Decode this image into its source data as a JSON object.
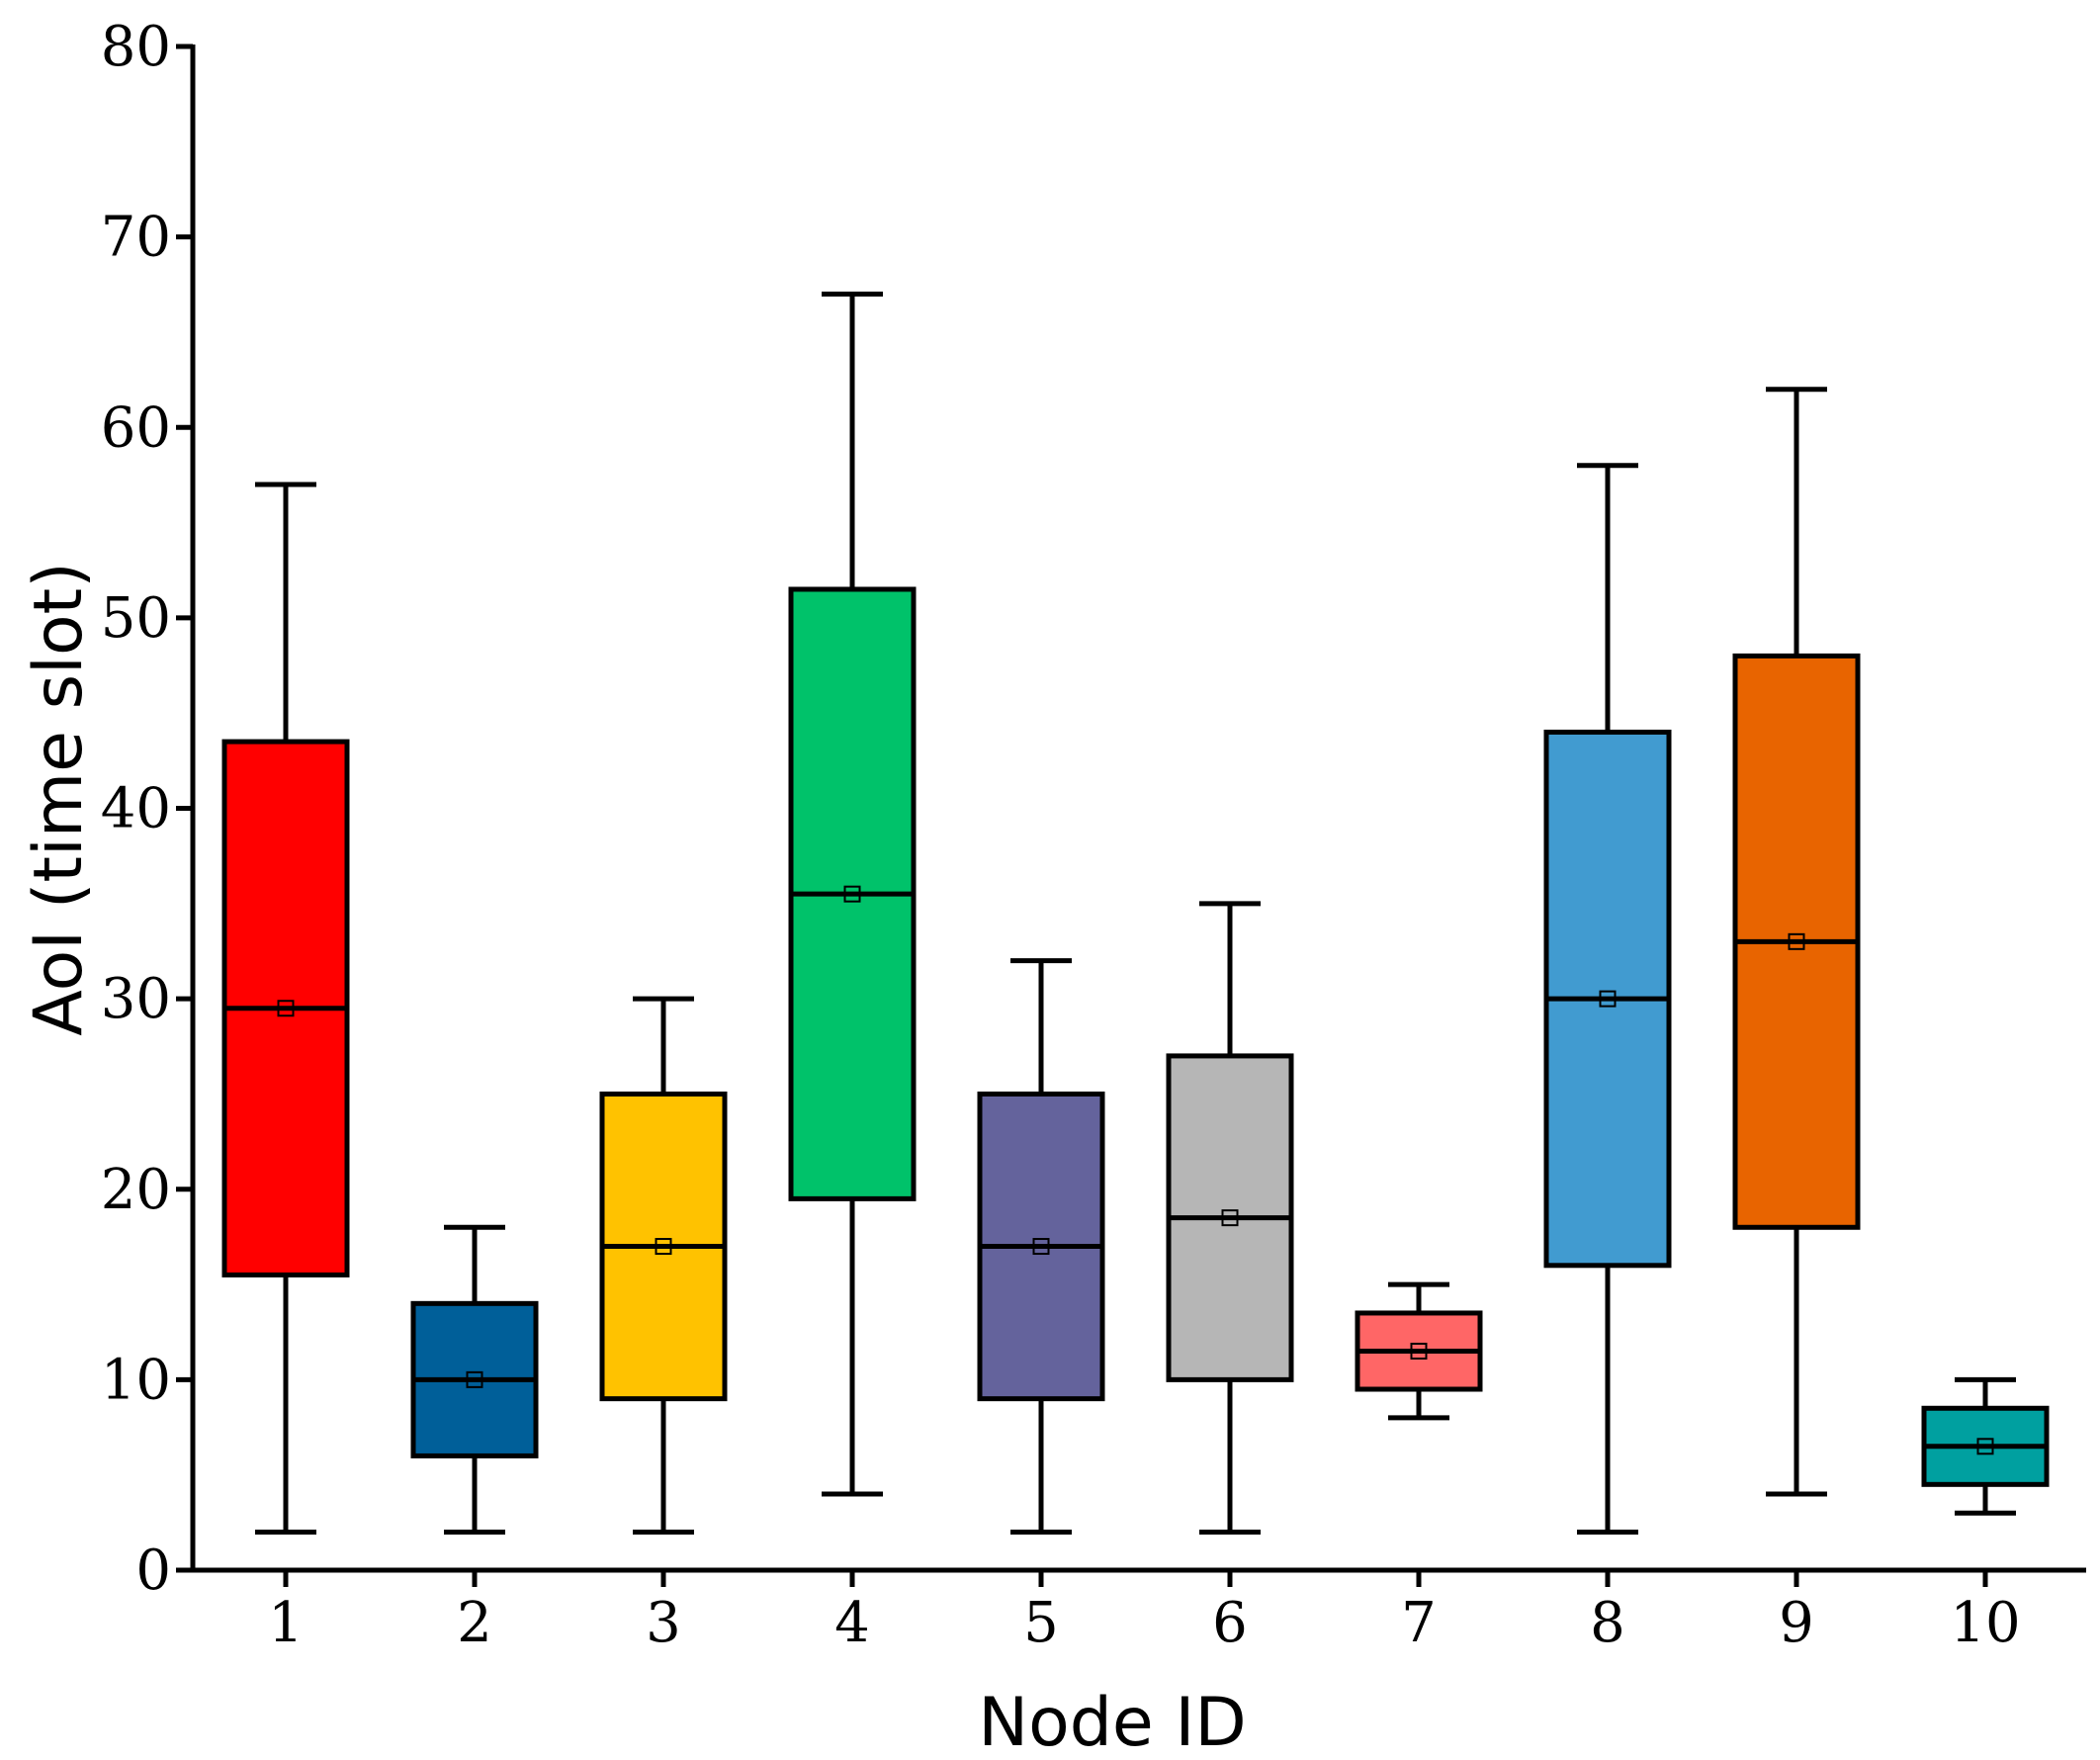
{
  "chart_data": {
    "type": "boxplot",
    "xlabel": "Node ID",
    "ylabel": "AoI (time slot)",
    "ylim": [
      0,
      80
    ],
    "yticks": [
      0,
      10,
      20,
      30,
      40,
      50,
      60,
      70,
      80
    ],
    "ytick_labels": [
      "0",
      "10",
      "20",
      "30",
      "40",
      "50",
      "60",
      "70",
      "80"
    ],
    "grid": false,
    "boxes": [
      {
        "label": "1",
        "whisker_low": 2,
        "q1": 15.5,
        "median": 29.5,
        "mean": 29.5,
        "q3": 43.5,
        "whisker_high": 57,
        "color": "#ff0000"
      },
      {
        "label": "2",
        "whisker_low": 2,
        "q1": 6,
        "median": 10,
        "mean": 10,
        "q3": 14,
        "whisker_high": 18,
        "color": "#005f99"
      },
      {
        "label": "3",
        "whisker_low": 2,
        "q1": 9,
        "median": 17,
        "mean": 17,
        "q3": 25,
        "whisker_high": 30,
        "color": "#ffc200"
      },
      {
        "label": "4",
        "whisker_low": 4,
        "q1": 19.5,
        "median": 35.5,
        "mean": 35.5,
        "q3": 51.5,
        "whisker_high": 67,
        "color": "#00c26a"
      },
      {
        "label": "5",
        "whisker_low": 2,
        "q1": 9,
        "median": 17,
        "mean": 17,
        "q3": 25,
        "whisker_high": 32,
        "color": "#64639c"
      },
      {
        "label": "6",
        "whisker_low": 2,
        "q1": 10,
        "median": 18.5,
        "mean": 18.5,
        "q3": 27,
        "whisker_high": 35,
        "color": "#b6b6b6"
      },
      {
        "label": "7",
        "whisker_low": 8,
        "q1": 9.5,
        "median": 11.5,
        "mean": 11.5,
        "q3": 13.5,
        "whisker_high": 15,
        "color": "#ff6666"
      },
      {
        "label": "8",
        "whisker_low": 2,
        "q1": 16,
        "median": 30,
        "mean": 30,
        "q3": 44,
        "whisker_high": 58,
        "color": "#419bd0"
      },
      {
        "label": "9",
        "whisker_low": 4,
        "q1": 18,
        "median": 33,
        "mean": 33,
        "q3": 48,
        "whisker_high": 62,
        "color": "#e86400"
      },
      {
        "label": "10",
        "whisker_low": 3,
        "q1": 4.5,
        "median": 6.5,
        "mean": 6.5,
        "q3": 8.5,
        "whisker_high": 10,
        "color": "#00a0a0"
      }
    ]
  }
}
